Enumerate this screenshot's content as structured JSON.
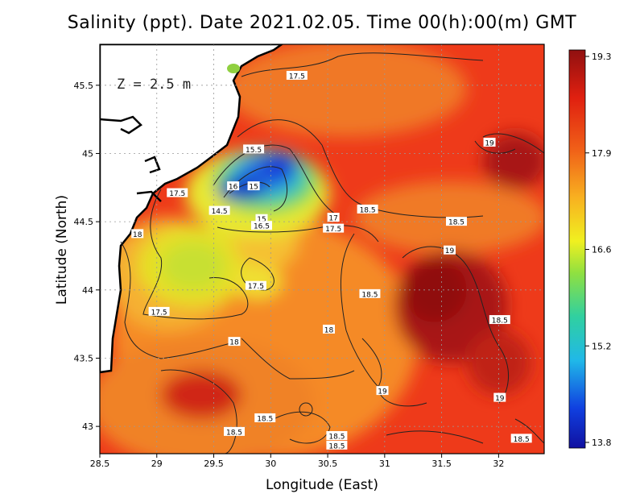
{
  "title": "Salinity (ppt). Date 2021.02.05. Time 00(h):00(m) GMT",
  "depth_label": "Z = 2.5 m",
  "xlabel": "Longitude (East)",
  "ylabel": "Latitude (North)",
  "x_ticks": [
    "28.5",
    "29",
    "29.5",
    "30",
    "30.5",
    "31",
    "31.5",
    "32"
  ],
  "y_ticks": [
    "43",
    "43.5",
    "44",
    "44.5",
    "45",
    "45.5"
  ],
  "colorbar_ticks": [
    "19.3",
    "17.9",
    "16.6",
    "15.2",
    "13.8"
  ],
  "colors": {
    "high": "#a01414",
    "mid_high": "#ee3a1a",
    "mid": "#f5a83a",
    "mid_low": "#e6f02a",
    "low_mid": "#2ac8c8",
    "low": "#1026c8",
    "land": "#ffffff"
  },
  "chart_data": {
    "type": "heatmap",
    "variable": "Salinity (ppt)",
    "xlim": [
      28.5,
      32.4
    ],
    "ylim": [
      42.8,
      45.8
    ],
    "color_range": [
      13.8,
      19.3
    ],
    "grid": true,
    "contour_labels": [
      {
        "value": "17.5",
        "lon": 30.23,
        "lat": 45.57
      },
      {
        "value": "19",
        "lon": 31.92,
        "lat": 45.08
      },
      {
        "value": "15.5",
        "lon": 29.85,
        "lat": 45.03
      },
      {
        "value": "16",
        "lon": 29.67,
        "lat": 44.76
      },
      {
        "value": "15",
        "lon": 29.85,
        "lat": 44.76
      },
      {
        "value": "17.5",
        "lon": 29.18,
        "lat": 44.71
      },
      {
        "value": "14.5",
        "lon": 29.55,
        "lat": 44.58
      },
      {
        "value": "15",
        "lon": 29.92,
        "lat": 44.52
      },
      {
        "value": "16.5",
        "lon": 29.92,
        "lat": 44.47
      },
      {
        "value": "17",
        "lon": 30.55,
        "lat": 44.53
      },
      {
        "value": "18.5",
        "lon": 30.85,
        "lat": 44.59
      },
      {
        "value": "17.5",
        "lon": 30.55,
        "lat": 44.45
      },
      {
        "value": "18.5",
        "lon": 31.63,
        "lat": 44.5
      },
      {
        "value": "18",
        "lon": 28.83,
        "lat": 44.41
      },
      {
        "value": "19",
        "lon": 31.57,
        "lat": 44.29
      },
      {
        "value": "17.5",
        "lon": 29.87,
        "lat": 44.03
      },
      {
        "value": "18.5",
        "lon": 30.87,
        "lat": 43.97
      },
      {
        "value": "17.5",
        "lon": 29.02,
        "lat": 43.84
      },
      {
        "value": "18.5",
        "lon": 32.01,
        "lat": 43.78
      },
      {
        "value": "18",
        "lon": 30.51,
        "lat": 43.71
      },
      {
        "value": "18",
        "lon": 29.68,
        "lat": 43.62
      },
      {
        "value": "19",
        "lon": 30.98,
        "lat": 43.26
      },
      {
        "value": "19",
        "lon": 32.01,
        "lat": 43.21
      },
      {
        "value": "18.5",
        "lon": 29.95,
        "lat": 43.06
      },
      {
        "value": "18.5",
        "lon": 29.68,
        "lat": 42.96
      },
      {
        "value": "18.5",
        "lon": 30.58,
        "lat": 42.93
      },
      {
        "value": "18.5",
        "lon": 30.58,
        "lat": 42.86
      },
      {
        "value": "18.5",
        "lon": 32.2,
        "lat": 42.91
      }
    ]
  }
}
